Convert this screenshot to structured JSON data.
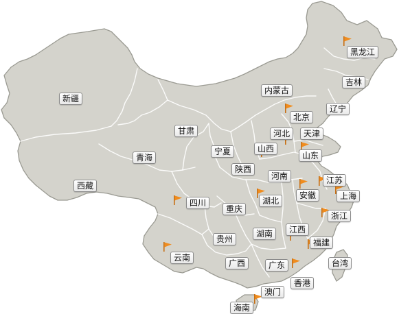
{
  "colors": {
    "land": "#d4d3cc",
    "outline": "#9a9a92",
    "border": "#ffffff",
    "flag": "#f08c1e",
    "label_bg": "#f4f4f4"
  },
  "provinces": [
    {
      "id": "heilongjiang",
      "label": "黑龙江",
      "flag": true
    },
    {
      "id": "jilin",
      "label": "吉林",
      "flag": false
    },
    {
      "id": "liaoning",
      "label": "辽宁",
      "flag": false
    },
    {
      "id": "neimenggu",
      "label": "内蒙古",
      "flag": false
    },
    {
      "id": "xinjiang",
      "label": "新疆",
      "flag": false
    },
    {
      "id": "beijing",
      "label": "北京",
      "flag": true
    },
    {
      "id": "tianjin",
      "label": "天津",
      "flag": false
    },
    {
      "id": "hebei",
      "label": "河北",
      "flag": true
    },
    {
      "id": "gansu",
      "label": "甘肃",
      "flag": false
    },
    {
      "id": "ningxia",
      "label": "宁夏",
      "flag": false
    },
    {
      "id": "shanxi",
      "label": "山西",
      "flag": true
    },
    {
      "id": "shandong",
      "label": "山东",
      "flag": true
    },
    {
      "id": "qinghai",
      "label": "青海",
      "flag": false
    },
    {
      "id": "shaanxi",
      "label": "陕西",
      "flag": false
    },
    {
      "id": "henan",
      "label": "河南",
      "flag": false
    },
    {
      "id": "xizang",
      "label": "西藏",
      "flag": false
    },
    {
      "id": "jiangsu",
      "label": "江苏",
      "flag": true
    },
    {
      "id": "anhui",
      "label": "安徽",
      "flag": true
    },
    {
      "id": "shanghai",
      "label": "上海",
      "flag": true
    },
    {
      "id": "sichuan",
      "label": "四川",
      "flag": true
    },
    {
      "id": "hubei",
      "label": "湖北",
      "flag": true
    },
    {
      "id": "chongqing",
      "label": "重庆",
      "flag": false
    },
    {
      "id": "zhejiang",
      "label": "浙江",
      "flag": true
    },
    {
      "id": "hunan",
      "label": "湖南",
      "flag": false
    },
    {
      "id": "jiangxi",
      "label": "江西",
      "flag": true
    },
    {
      "id": "guizhou",
      "label": "贵州",
      "flag": false
    },
    {
      "id": "fujian",
      "label": "福建",
      "flag": true
    },
    {
      "id": "yunnan",
      "label": "云南",
      "flag": true
    },
    {
      "id": "guangxi",
      "label": "广西",
      "flag": false
    },
    {
      "id": "guangdong",
      "label": "广东",
      "flag": true
    },
    {
      "id": "taiwan",
      "label": "台湾",
      "flag": false
    },
    {
      "id": "xianggang",
      "label": "香港",
      "flag": false
    },
    {
      "id": "aomen",
      "label": "澳门",
      "flag": false
    },
    {
      "id": "hainan",
      "label": "海南",
      "flag": true
    }
  ]
}
